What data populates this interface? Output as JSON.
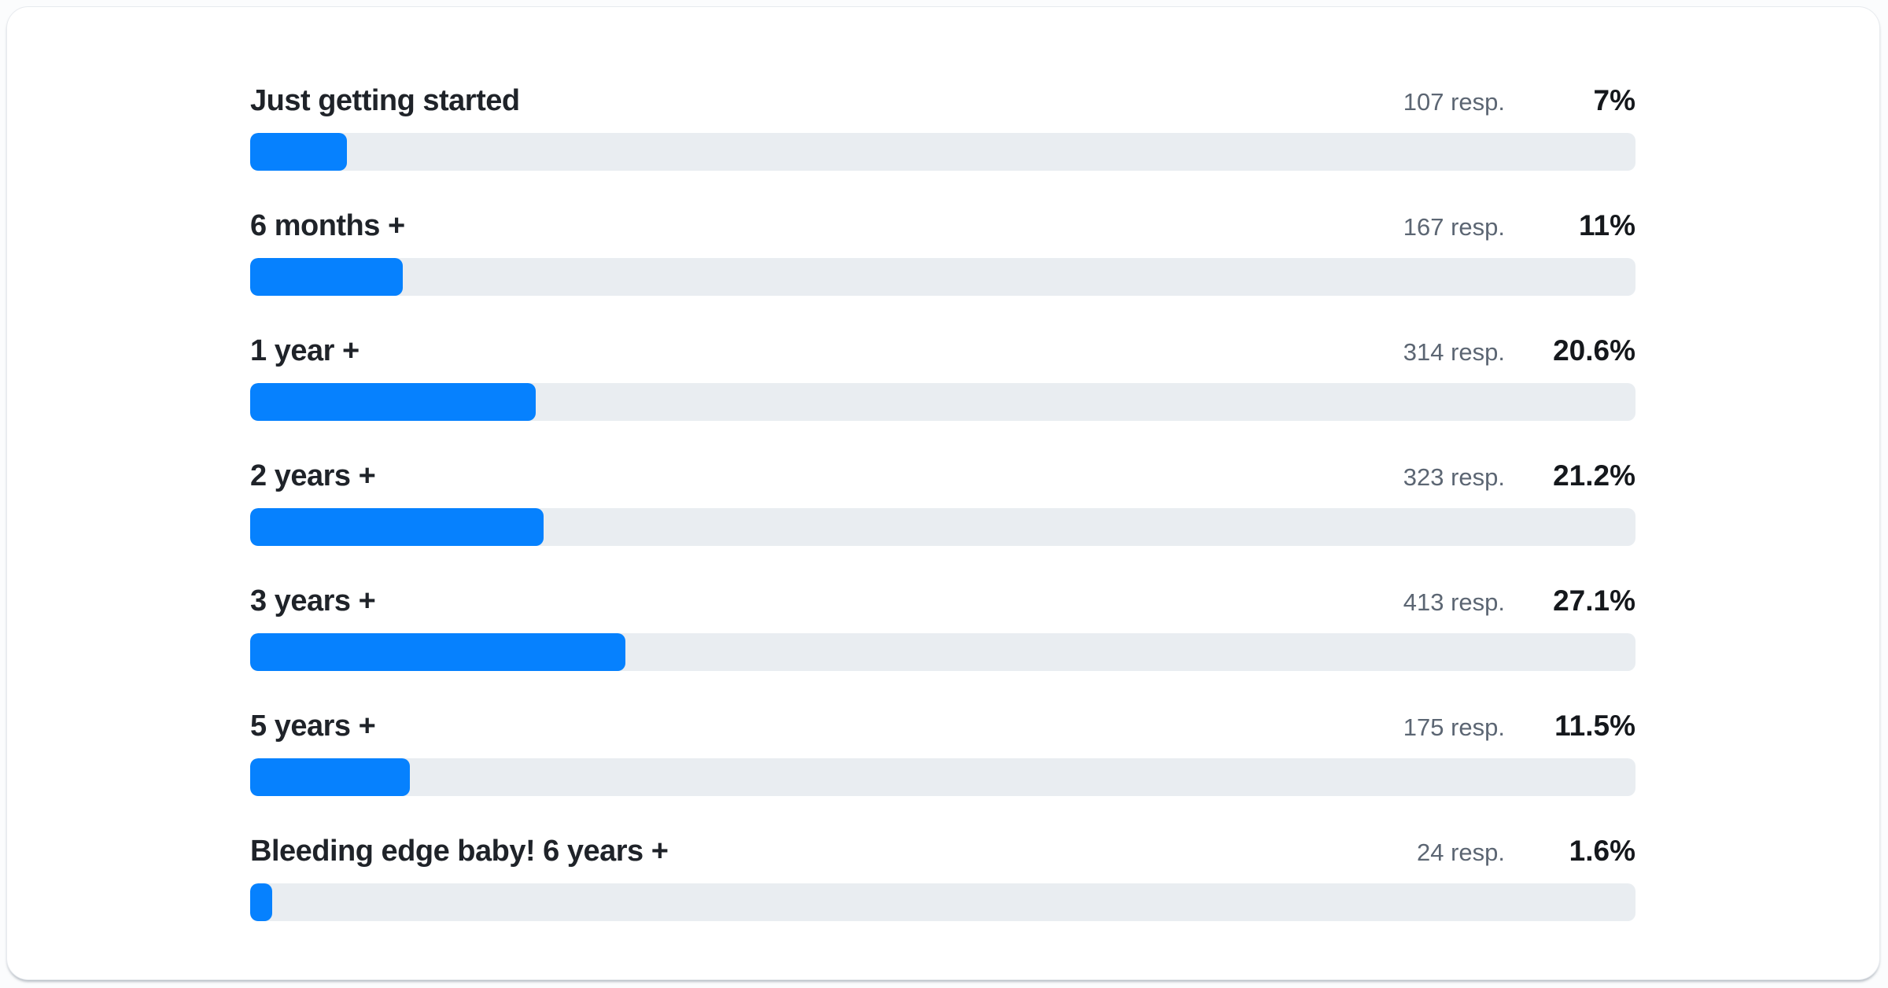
{
  "colors": {
    "bar_fill": "#0681fe",
    "bar_track": "#e9edf1",
    "label_text": "#1f2329",
    "muted_text": "#5c6673",
    "percent_text": "#15181c",
    "card_background": "#ffffff",
    "card_border": "#e7eaee"
  },
  "chart_data": {
    "type": "bar",
    "orientation": "horizontal",
    "title": "",
    "xlabel": "",
    "ylabel": "",
    "xlim": [
      0,
      100
    ],
    "grid": false,
    "legend": false,
    "categories": [
      "Just getting started",
      "6 months +",
      "1 year +",
      "2 years +",
      "3 years +",
      "5 years +",
      "Bleeding edge baby! 6 years +"
    ],
    "values": [
      7,
      11,
      20.6,
      21.2,
      27.1,
      11.5,
      1.6
    ],
    "responses": [
      107,
      167,
      314,
      323,
      413,
      175,
      24
    ],
    "rows": [
      {
        "label": "Just getting started",
        "resp_label": "107 resp.",
        "percent_label": "7%",
        "value": 7
      },
      {
        "label": "6 months +",
        "resp_label": "167 resp.",
        "percent_label": "11%",
        "value": 11
      },
      {
        "label": "1 year +",
        "resp_label": "314 resp.",
        "percent_label": "20.6%",
        "value": 20.6
      },
      {
        "label": "2 years +",
        "resp_label": "323 resp.",
        "percent_label": "21.2%",
        "value": 21.2
      },
      {
        "label": "3 years +",
        "resp_label": "413 resp.",
        "percent_label": "27.1%",
        "value": 27.1
      },
      {
        "label": "5 years +",
        "resp_label": "175 resp.",
        "percent_label": "11.5%",
        "value": 11.5
      },
      {
        "label": "Bleeding edge baby! 6 years +",
        "resp_label": "24 resp.",
        "percent_label": "1.6%",
        "value": 1.6
      }
    ]
  }
}
